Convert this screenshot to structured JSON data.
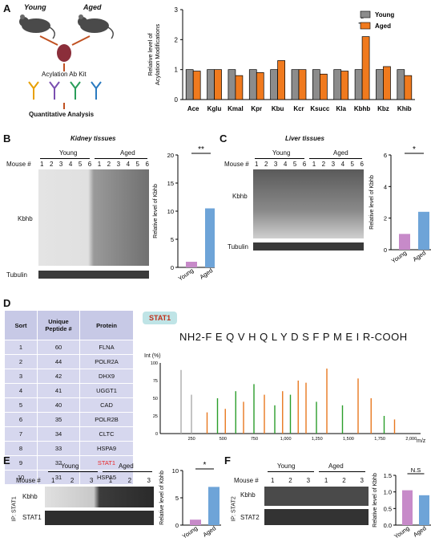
{
  "panels": {
    "A": {
      "letter": "A",
      "young": "Young",
      "aged": "Aged",
      "kit": "Acylation Ab Kit",
      "analysis": "Quantitative Analysis"
    },
    "B": {
      "letter": "B",
      "title": "Kidney tissues",
      "young": "Young",
      "aged": "Aged",
      "mouse": "Mouse #",
      "kbhb": "Kbhb",
      "tubulin": "Tubulin",
      "lanes": [
        "1",
        "2",
        "3",
        "4",
        "5",
        "6",
        "1",
        "2",
        "3",
        "4",
        "5",
        "6"
      ]
    },
    "C": {
      "letter": "C",
      "title": "Liver tissues",
      "young": "Young",
      "aged": "Aged",
      "mouse": "Mouse #",
      "kbhb": "Kbhb",
      "tubulin": "Tubulin",
      "lanes": [
        "1",
        "2",
        "3",
        "4",
        "5",
        "6",
        "1",
        "2",
        "3",
        "4",
        "5",
        "6"
      ]
    },
    "D": {
      "letter": "D",
      "headers": [
        "Sort",
        "Unique Peptide #",
        "Protein"
      ],
      "rows": [
        [
          "1",
          "60",
          "FLNA"
        ],
        [
          "2",
          "44",
          "POLR2A"
        ],
        [
          "3",
          "42",
          "DHX9"
        ],
        [
          "4",
          "41",
          "UGGT1"
        ],
        [
          "5",
          "40",
          "CAD"
        ],
        [
          "6",
          "35",
          "POLR2B"
        ],
        [
          "7",
          "34",
          "CLTC"
        ],
        [
          "8",
          "33",
          "HSPA9"
        ],
        [
          "9",
          "32",
          "STAT1"
        ],
        [
          "10",
          "31",
          "HSPA5"
        ]
      ],
      "highlight_color": "#e8262a",
      "stat1": "STAT1",
      "sequence": "NH2-F E Q V H Q L Y D S F P M E I R-COOH",
      "int_label": "Int (%)",
      "mz_label": "m/z",
      "y_ticks": [
        "0",
        "25",
        "50",
        "75",
        "100"
      ],
      "x_ticks": [
        "250",
        "500",
        "750",
        "1,000",
        "1,250",
        "1,500",
        "1,750",
        "2,000"
      ]
    },
    "E": {
      "letter": "E",
      "young": "Young",
      "aged": "Aged",
      "mouse": "Mouse #",
      "ip": "IP: STAT1",
      "kbhb": "Kbhb",
      "stat": "STAT1",
      "lanes": [
        "1",
        "2",
        "3",
        "1",
        "2",
        "3"
      ]
    },
    "F": {
      "letter": "F",
      "young": "Young",
      "aged": "Aged",
      "mouse": "Mouse #",
      "ip": "IP: STAT2",
      "kbhb": "Kbhb",
      "stat": "STAT2",
      "lanes": [
        "1",
        "2",
        "3",
        "1",
        "2",
        "3"
      ]
    }
  },
  "chart_data": [
    {
      "type": "bar",
      "panel": "A",
      "ylabel": "Relative level of Acylation Modifications",
      "ylim": [
        0,
        3
      ],
      "yticks": [
        0,
        1,
        2,
        3
      ],
      "categories": [
        "Ace",
        "Kglu",
        "Kmal",
        "Kpr",
        "Kbu",
        "Kcr",
        "Ksucc",
        "Kla",
        "Kbhb",
        "Kbz",
        "Khib"
      ],
      "series": [
        {
          "name": "Young",
          "color": "#8c8c8c",
          "values": [
            1,
            1,
            1,
            1,
            1,
            1,
            1,
            1,
            1,
            1,
            1
          ]
        },
        {
          "name": "Aged",
          "color": "#f07a1e",
          "values": [
            0.95,
            1.0,
            0.8,
            0.9,
            1.3,
            1.0,
            0.85,
            0.95,
            2.1,
            1.1,
            0.8
          ]
        }
      ],
      "significance": {
        "category": "Kbhb",
        "mark": "*"
      }
    },
    {
      "type": "bar",
      "panel": "B",
      "ylabel": "Relative level of Kbhb",
      "ylim": [
        0,
        20
      ],
      "yticks": [
        0,
        5,
        10,
        15,
        20
      ],
      "categories": [
        "Young",
        "Aged"
      ],
      "values": [
        1.0,
        10.5
      ],
      "colors": [
        "#c78ac9",
        "#6ea4d8"
      ],
      "significance": "**"
    },
    {
      "type": "bar",
      "panel": "C",
      "ylabel": "Relative level of Kbhb",
      "ylim": [
        0,
        6
      ],
      "yticks": [
        0,
        2,
        4,
        6
      ],
      "categories": [
        "Young",
        "Aged"
      ],
      "values": [
        1.0,
        2.4
      ],
      "colors": [
        "#c78ac9",
        "#6ea4d8"
      ],
      "significance": "*"
    },
    {
      "type": "bar",
      "panel": "E",
      "ylabel": "Relative level of Kbhb",
      "ylim": [
        0,
        10
      ],
      "yticks": [
        0,
        5,
        10
      ],
      "categories": [
        "Young",
        "Aged"
      ],
      "values": [
        1.0,
        7.0
      ],
      "colors": [
        "#c78ac9",
        "#6ea4d8"
      ],
      "significance": "*"
    },
    {
      "type": "bar",
      "panel": "F",
      "ylabel": "Relative level of Kbhb",
      "ylim": [
        0,
        1.5
      ],
      "yticks": [
        0.0,
        0.5,
        1.0,
        1.5
      ],
      "categories": [
        "Young",
        "Aged"
      ],
      "values": [
        1.05,
        0.9
      ],
      "colors": [
        "#c78ac9",
        "#6ea4d8"
      ],
      "significance": "N.S"
    }
  ]
}
